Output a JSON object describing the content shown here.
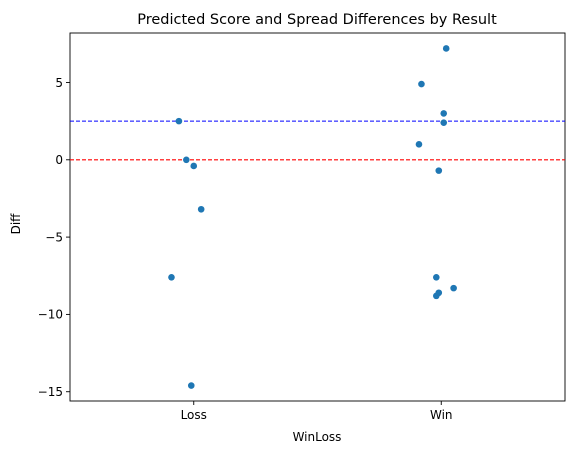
{
  "chart_data": {
    "type": "scatter",
    "title": "Predicted Score and Spread Differences by Result",
    "xlabel": "WinLoss",
    "ylabel": "Diff",
    "categories": [
      "Loss",
      "Win"
    ],
    "ylim": [
      -15.6,
      8.2
    ],
    "yticks": [
      -15,
      -10,
      -5,
      0,
      5
    ],
    "grid": false,
    "point_color": "#1f77b4",
    "points": [
      {
        "category": "Loss",
        "jitter": -0.06,
        "y": 2.5
      },
      {
        "category": "Loss",
        "jitter": -0.03,
        "y": 0.0
      },
      {
        "category": "Loss",
        "jitter": 0.0,
        "y": -0.4
      },
      {
        "category": "Loss",
        "jitter": 0.03,
        "y": -3.2
      },
      {
        "category": "Loss",
        "jitter": -0.09,
        "y": -7.6
      },
      {
        "category": "Loss",
        "jitter": -0.01,
        "y": -14.6
      },
      {
        "category": "Win",
        "jitter": 0.02,
        "y": 7.2
      },
      {
        "category": "Win",
        "jitter": -0.08,
        "y": 4.9
      },
      {
        "category": "Win",
        "jitter": 0.01,
        "y": 3.0
      },
      {
        "category": "Win",
        "jitter": 0.01,
        "y": 2.4
      },
      {
        "category": "Win",
        "jitter": -0.09,
        "y": 1.0
      },
      {
        "category": "Win",
        "jitter": -0.01,
        "y": -0.7
      },
      {
        "category": "Win",
        "jitter": -0.02,
        "y": -7.6
      },
      {
        "category": "Win",
        "jitter": -0.01,
        "y": -8.6
      },
      {
        "category": "Win",
        "jitter": 0.05,
        "y": -8.3
      },
      {
        "category": "Win",
        "jitter": -0.02,
        "y": -8.8
      }
    ],
    "reference_lines": [
      {
        "y": 2.5,
        "color": "#0000ff",
        "style": "dashed"
      },
      {
        "y": 0.0,
        "color": "#ff0000",
        "style": "dashed"
      }
    ]
  }
}
